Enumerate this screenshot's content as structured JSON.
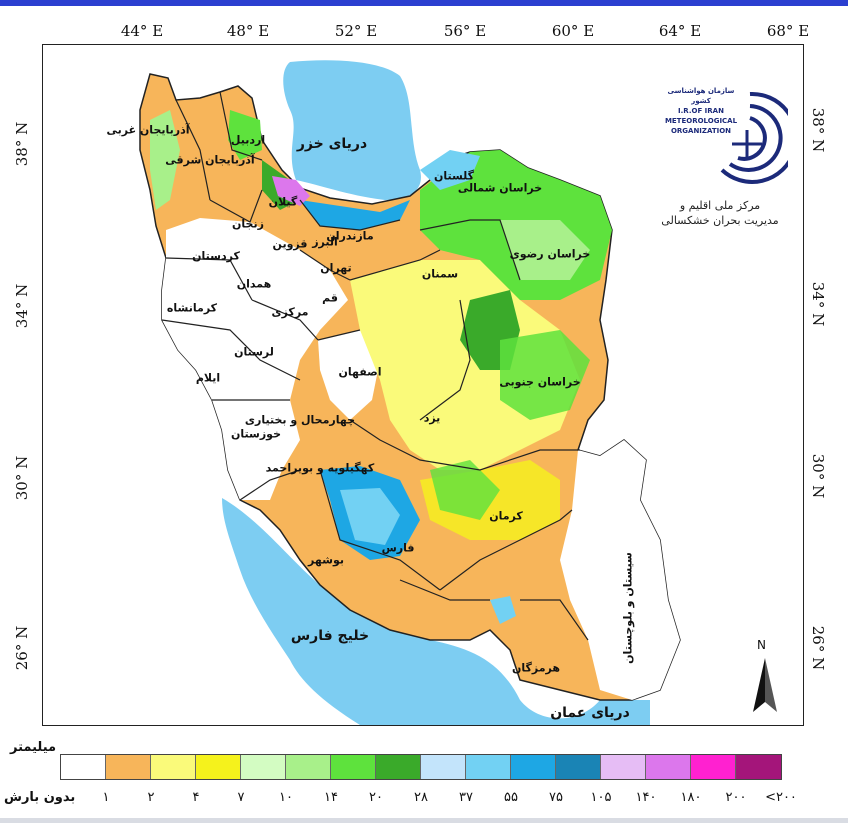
{
  "map": {
    "longitude_labels": [
      "44° E",
      "48° E",
      "52° E",
      "56° E",
      "60° E",
      "64° E",
      "68° E"
    ],
    "latitude_labels": [
      "38° N",
      "34° N",
      "30° N",
      "26° N"
    ],
    "water_bodies": {
      "caspian": "دریای خزر",
      "persian_gulf": "خلیج فارس",
      "oman_sea": "دریای عمان"
    },
    "provinces": {
      "west_azarbaijan": "آذربایجان غربی",
      "east_azarbaijan": "آذربایجان شرقی",
      "ardabil": "اردبیل",
      "zanjan": "زنجان",
      "gilan": "گیلان",
      "mazandaran": "مازندران",
      "golestan": "گلستان",
      "north_khorasan": "خراسان شمالی",
      "razavi_khorasan": "خراسان رضوی",
      "semnan": "سمنان",
      "tehran": "تهران",
      "alborz": "البرز",
      "qazvin": "قزوین",
      "qom": "قم",
      "markazi": "مرکزی",
      "hamadan": "همدان",
      "kurdistan": "کردستان",
      "kermanshah": "کرمانشاه",
      "lorestan": "لرستان",
      "ilam": "ایلام",
      "khuzestan": "خوزستان",
      "isfahan": "اصفهان",
      "chaharmahal": "چهارمحال و بختیاری",
      "kohgiluyeh": "کهگیلویه و بویراحمد",
      "bushehr": "بوشهر",
      "fars": "فارس",
      "yazd": "یزد",
      "south_khorasan": "خراسان جنوبی",
      "kerman": "کرمان",
      "hormozgan": "هرمزگان",
      "sistan": "سیستان و بلوچستان"
    },
    "north_label": "N"
  },
  "logo": {
    "org_small": "سازمان هواشناسی کشور",
    "org_line1": "I.R.OF IRAN",
    "org_line2": "METEOROLOGICAL",
    "org_line3": "ORGANIZATION",
    "caption_line1": "مرکز ملی اقلیم و",
    "caption_line2": "مدیریت بحران خشکسالی"
  },
  "legend": {
    "unit": "میلیمتر",
    "no_rain": "بدون بارش",
    "ticks": [
      "۱",
      "۲",
      "۴",
      "۷",
      "۱۰",
      "۱۴",
      "۲۰",
      "۲۸",
      "۳۷",
      "۵۵",
      "۷۵",
      "۱۰۵",
      "۱۴۰",
      "۱۸۰",
      "۲۰۰",
      "<۲۰۰"
    ],
    "colors": [
      "#ffffff",
      "#f7b55a",
      "#fafa7a",
      "#f5f21c",
      "#d3fcc2",
      "#a8f08a",
      "#5ee23d",
      "#3aaa2a",
      "#c3e4fb",
      "#72d1f3",
      "#1ea7e4",
      "#1a84b5",
      "#e6bdf5",
      "#dc77ec",
      "#ff21d0",
      "#a4157a"
    ]
  }
}
